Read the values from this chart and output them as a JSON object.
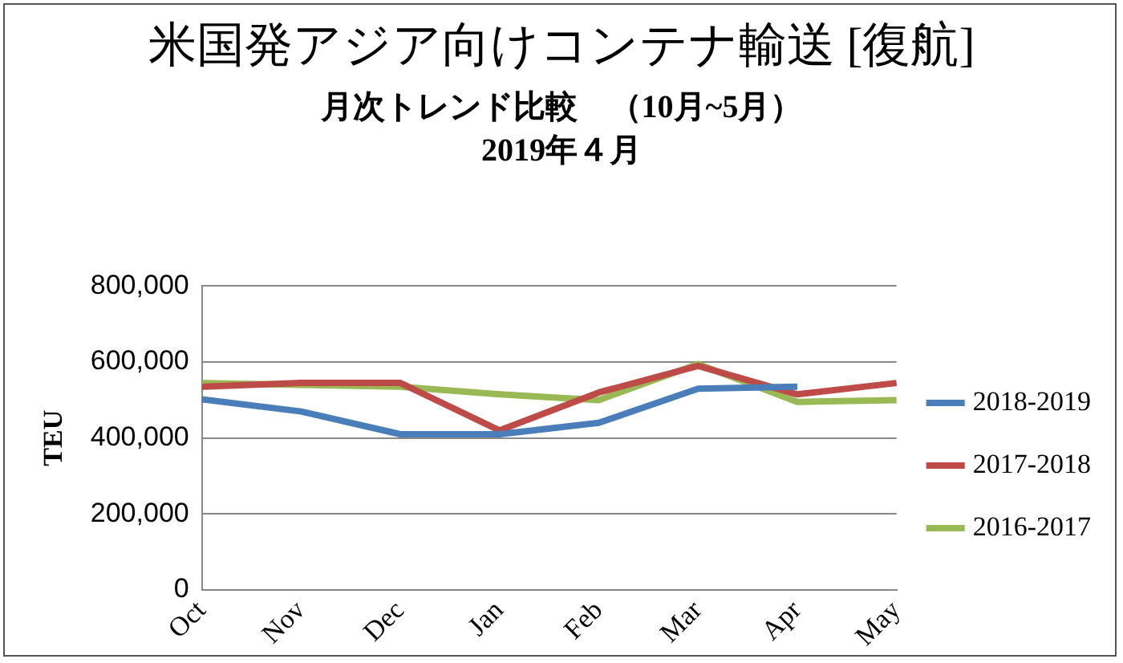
{
  "chart_data": {
    "type": "line",
    "title": "米国発アジア向けコンテナ輸送 [復航]",
    "subtitle": "月次トレンド比較　（10月~5月）\n2019年４月",
    "ylabel": "TEU",
    "categories": [
      "Oct",
      "Nov",
      "Dec",
      "Jan",
      "Feb",
      "Mar",
      "Apr",
      "May"
    ],
    "series": [
      {
        "name": "2018-2019",
        "color": "#4a7ebb",
        "values": [
          502000,
          470000,
          410000,
          410000,
          440000,
          530000,
          535000,
          null
        ]
      },
      {
        "name": "2017-2018",
        "color": "#be4b48",
        "values": [
          535000,
          545000,
          545000,
          420000,
          520000,
          590000,
          515000,
          545000
        ]
      },
      {
        "name": "2016-2017",
        "color": "#98b954",
        "values": [
          545000,
          540000,
          535000,
          515000,
          500000,
          595000,
          495000,
          500000
        ]
      }
    ],
    "ylim": [
      0,
      800000
    ],
    "yticks": [
      0,
      {
        "value": 200000,
        "label": "200,000"
      },
      {
        "value": 400000,
        "label": "400,000"
      },
      {
        "value": 600000,
        "label": "600,000"
      },
      {
        "value": 800000,
        "label": "800,000"
      }
    ],
    "grid": "y",
    "legend": "right",
    "marker": "none"
  }
}
